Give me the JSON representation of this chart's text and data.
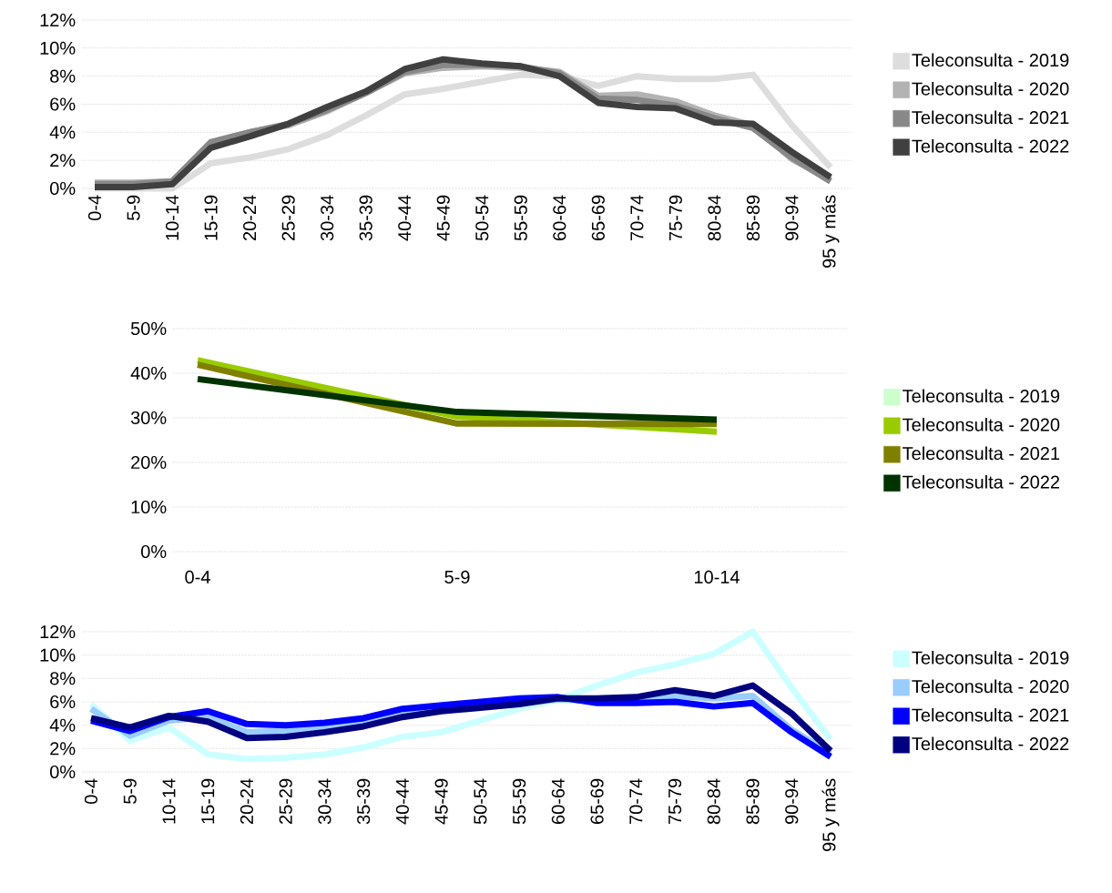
{
  "chart_data": [
    {
      "type": "line",
      "categories": [
        "0-4",
        "5-9",
        "10-14",
        "15-19",
        "20-24",
        "25-29",
        "30-34",
        "35-39",
        "40-44",
        "45-49",
        "50-54",
        "55-59",
        "60-64",
        "65-69",
        "70-74",
        "75-79",
        "80-84",
        "85-89",
        "90-94",
        "95 y más"
      ],
      "ylim": [
        0,
        12
      ],
      "yticks": [
        {
          "value": 0,
          "label": "0%"
        },
        {
          "value": 2,
          "label": "2%"
        },
        {
          "value": 4,
          "label": "4%"
        },
        {
          "value": 6,
          "label": "6%"
        },
        {
          "value": 8,
          "label": "8%"
        },
        {
          "value": 10,
          "label": "10%"
        },
        {
          "value": 12,
          "label": "12%"
        }
      ],
      "grid": "y",
      "legend": "right",
      "line_style": "solid",
      "marker": "none",
      "series": [
        {
          "name": "Teleconsulta - 2019",
          "color": "#dddddd",
          "values": [
            0.0,
            0.0,
            0.0,
            1.8,
            2.2,
            2.8,
            3.8,
            5.2,
            6.7,
            7.1,
            7.6,
            8.1,
            8.0,
            7.3,
            8.0,
            7.8,
            7.8,
            8.1,
            4.5,
            1.5
          ]
        },
        {
          "name": "Teleconsulta - 2020",
          "color": "#b3b3b3",
          "values": [
            0.4,
            0.4,
            0.5,
            3.2,
            4.0,
            4.5,
            5.5,
            6.8,
            8.2,
            8.6,
            8.7,
            8.6,
            8.3,
            6.6,
            6.7,
            6.2,
            5.2,
            4.5,
            2.1,
            0.6
          ]
        },
        {
          "name": "Teleconsulta - 2021",
          "color": "#888888",
          "values": [
            0.3,
            0.3,
            0.5,
            3.3,
            4.0,
            4.6,
            5.6,
            6.8,
            8.3,
            8.8,
            8.8,
            8.7,
            8.2,
            6.4,
            6.3,
            5.9,
            5.0,
            4.3,
            2.2,
            0.5
          ]
        },
        {
          "name": "Teleconsulta - 2022",
          "color": "#404040",
          "values": [
            0.1,
            0.1,
            0.3,
            2.9,
            3.7,
            4.6,
            5.8,
            6.9,
            8.5,
            9.2,
            8.9,
            8.7,
            8.0,
            6.1,
            5.8,
            5.7,
            4.7,
            4.6,
            2.6,
            0.8
          ]
        }
      ]
    },
    {
      "type": "line",
      "categories": [
        "0-4",
        "5-9",
        "10-14"
      ],
      "ylim": [
        0,
        50
      ],
      "yticks": [
        {
          "value": 0,
          "label": "0%"
        },
        {
          "value": 10,
          "label": "10%"
        },
        {
          "value": 20,
          "label": "20%"
        },
        {
          "value": 30,
          "label": "30%"
        },
        {
          "value": 40,
          "label": "40%"
        },
        {
          "value": 50,
          "label": "50%"
        }
      ],
      "grid": "y",
      "legend": "right",
      "line_style": "solid",
      "marker": "none",
      "series": [
        {
          "name": "Teleconsulta - 2019",
          "color": "#ccffcc",
          "values": [
            null,
            null,
            null
          ]
        },
        {
          "name": "Teleconsulta - 2020",
          "color": "#99cc00",
          "values": [
            42.9,
            30.3,
            26.9
          ]
        },
        {
          "name": "Teleconsulta - 2021",
          "color": "#808000",
          "values": [
            41.9,
            28.7,
            28.6
          ]
        },
        {
          "name": "Teleconsulta - 2022",
          "color": "#003300",
          "values": [
            38.7,
            31.3,
            29.6
          ]
        }
      ]
    },
    {
      "type": "line",
      "categories": [
        "0-4",
        "5-9",
        "10-14",
        "15-19",
        "20-24",
        "25-29",
        "30-34",
        "35-39",
        "40-44",
        "45-49",
        "50-54",
        "55-59",
        "60-64",
        "65-69",
        "70-74",
        "75-79",
        "80-84",
        "85-89",
        "90-94",
        "95 y más"
      ],
      "ylim": [
        0,
        12
      ],
      "yticks": [
        {
          "value": 0,
          "label": "0%"
        },
        {
          "value": 2,
          "label": "2%"
        },
        {
          "value": 4,
          "label": "4%"
        },
        {
          "value": 6,
          "label": "6%"
        },
        {
          "value": 8,
          "label": "8%"
        },
        {
          "value": 10,
          "label": "10%"
        },
        {
          "value": 12,
          "label": "12%"
        }
      ],
      "grid": "y",
      "legend": "right",
      "line_style": "solid",
      "marker": "none",
      "series": [
        {
          "name": "Teleconsulta - 2019",
          "color": "#ccffff",
          "values": [
            5.8,
            2.7,
            3.8,
            1.5,
            1.1,
            1.2,
            1.5,
            2.1,
            3.0,
            3.4,
            4.4,
            5.4,
            6.2,
            7.4,
            8.5,
            9.2,
            10.1,
            12.0,
            7.2,
            2.8
          ]
        },
        {
          "name": "Teleconsulta - 2020",
          "color": "#99ccff",
          "values": [
            5.4,
            3.1,
            4.4,
            4.7,
            3.4,
            3.5,
            3.8,
            4.2,
            4.9,
            5.4,
            5.7,
            5.9,
            6.2,
            6.1,
            6.2,
            6.5,
            6.3,
            6.5,
            3.6,
            1.6
          ]
        },
        {
          "name": "Teleconsulta - 2021",
          "color": "#0000ff",
          "values": [
            4.4,
            3.5,
            4.7,
            5.2,
            4.1,
            4.0,
            4.2,
            4.6,
            5.4,
            5.7,
            6.0,
            6.3,
            6.4,
            5.9,
            5.9,
            6.0,
            5.6,
            5.9,
            3.4,
            1.3
          ]
        },
        {
          "name": "Teleconsulta - 2022",
          "color": "#000080",
          "values": [
            4.6,
            3.8,
            4.8,
            4.3,
            2.9,
            3.0,
            3.4,
            3.9,
            4.7,
            5.2,
            5.5,
            5.8,
            6.3,
            6.3,
            6.4,
            7.0,
            6.5,
            7.4,
            5.0,
            1.8
          ]
        }
      ]
    }
  ]
}
